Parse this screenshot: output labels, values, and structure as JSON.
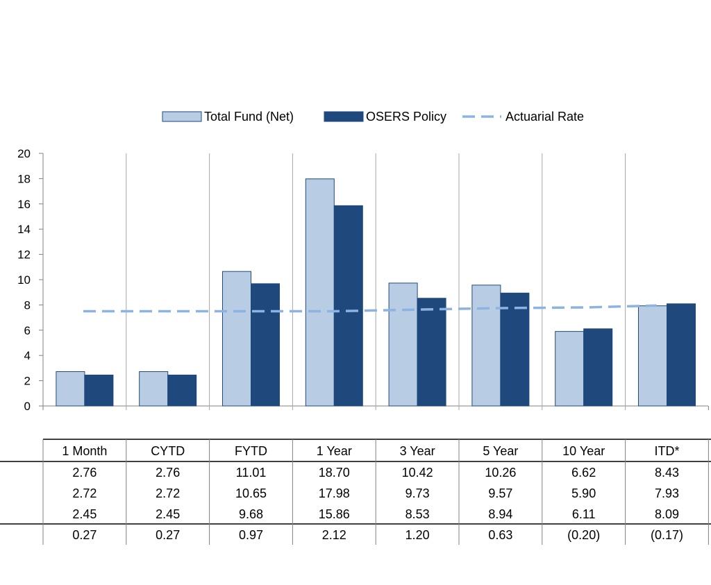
{
  "chart_data": {
    "type": "bar",
    "categories": [
      "1 Month",
      "CYTD",
      "FYTD",
      "1 Year",
      "3 Year",
      "5 Year",
      "10 Year",
      "ITD*"
    ],
    "series": [
      {
        "name": "Total Fund (Net)",
        "kind": "bar",
        "color": "#b8cce4",
        "values": [
          2.72,
          2.72,
          10.65,
          17.98,
          9.73,
          9.57,
          5.9,
          7.93
        ]
      },
      {
        "name": "OSERS Policy",
        "kind": "bar",
        "color": "#1f497d",
        "values": [
          2.45,
          2.45,
          9.68,
          15.86,
          8.53,
          8.94,
          6.11,
          8.09
        ]
      },
      {
        "name": "Actuarial Rate",
        "kind": "line",
        "style": "dashed",
        "color": "#8db3e2",
        "values": [
          7.5,
          7.5,
          7.5,
          7.5,
          7.63,
          7.75,
          7.8,
          7.95
        ]
      }
    ],
    "ylim": [
      0,
      20
    ],
    "yticks": [
      "0",
      "2",
      "4",
      "6",
      "8",
      "10",
      "12",
      "14",
      "16",
      "18",
      "20"
    ],
    "grid": "vertical category separators",
    "legend": "top-center",
    "table": {
      "rows": [
        [
          "2.76",
          "2.76",
          "11.01",
          "18.70",
          "10.42",
          "10.26",
          "6.62",
          "8.43"
        ],
        [
          "2.72",
          "2.72",
          "10.65",
          "17.98",
          "9.73",
          "9.57",
          "5.90",
          "7.93"
        ],
        [
          "2.45",
          "2.45",
          "9.68",
          "15.86",
          "8.53",
          "8.94",
          "6.11",
          "8.09"
        ],
        [
          "0.27",
          "0.27",
          "0.97",
          "2.12",
          "1.20",
          "0.63",
          "(0.20)",
          "(0.17)"
        ]
      ],
      "negative_color": "#ff0000"
    }
  }
}
